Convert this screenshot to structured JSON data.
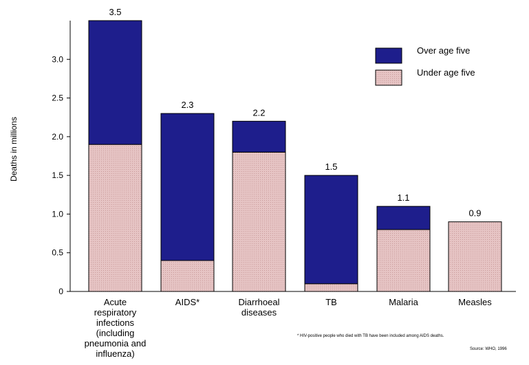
{
  "chart_data": {
    "type": "bar",
    "stacked": true,
    "categories": [
      "Acute\nrespiratory\ninfections\n(including\npneumonia and\ninfluenza)",
      "AIDS*",
      "Diarrhoeal\ndiseases",
      "TB",
      "Malaria",
      "Measles"
    ],
    "series": [
      {
        "name": "Under age five",
        "values": [
          1.9,
          0.4,
          1.8,
          0.1,
          0.8,
          0.9
        ],
        "color": "#e6c4c4"
      },
      {
        "name": "Over age five",
        "values": [
          1.6,
          1.9,
          0.4,
          1.4,
          0.3,
          0.0
        ],
        "color": "#1e1e8c"
      }
    ],
    "totals": [
      "3.5",
      "2.3",
      "2.2",
      "1.5",
      "1.1",
      "0.9"
    ],
    "ylabel": "Deaths in millions",
    "ylim": [
      0,
      3.5
    ],
    "yticks": [
      "0",
      "0.5",
      "1.0",
      "1.5",
      "2.0",
      "2.5",
      "3.0"
    ],
    "legend": {
      "placement": "top-right",
      "entries": [
        {
          "label": "Over age five",
          "color": "#1e1e8c"
        },
        {
          "label": "Under age five",
          "color": "#e6c4c4"
        }
      ]
    },
    "footnote": "* HIV-positive people who died with TB have been included among AIDS deaths.",
    "source": "Source: WHO, 1996"
  }
}
